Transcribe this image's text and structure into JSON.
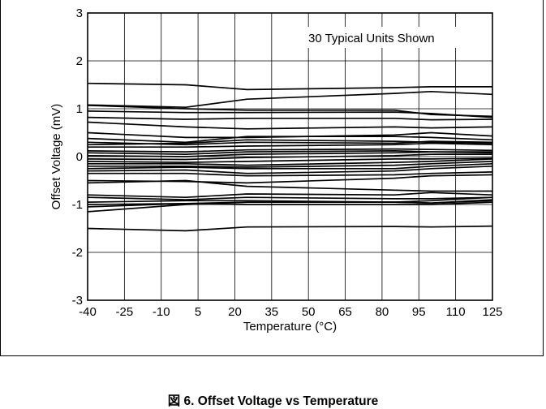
{
  "figure": {
    "caption": "図 6. Offset Voltage vs Temperature"
  },
  "chart_data": {
    "type": "line",
    "title": "",
    "xlabel": "Temperature (°C)",
    "ylabel": "Offset Voltage (mV)",
    "annotation": "30 Typical Units Shown",
    "xlim": [
      -40,
      125
    ],
    "ylim": [
      -3,
      3
    ],
    "xticks": [
      -40,
      -25,
      -10,
      5,
      20,
      35,
      50,
      65,
      80,
      95,
      110,
      125
    ],
    "yticks": [
      -3,
      -2,
      -1,
      0,
      1,
      2,
      3
    ],
    "grid": true,
    "legend": "none",
    "line_color": "#000000",
    "x": [
      -40,
      0,
      25,
      85,
      100,
      125
    ],
    "series": [
      {
        "values": [
          1.53,
          1.5,
          1.4,
          1.44,
          1.46,
          1.46
        ]
      },
      {
        "values": [
          1.08,
          1.03,
          1.2,
          1.32,
          1.36,
          1.3
        ]
      },
      {
        "values": [
          1.07,
          1.0,
          0.97,
          0.97,
          0.88,
          0.84
        ]
      },
      {
        "values": [
          0.95,
          0.92,
          0.92,
          0.93,
          0.9,
          0.82
        ]
      },
      {
        "values": [
          0.82,
          0.78,
          0.8,
          0.8,
          0.77,
          0.78
        ]
      },
      {
        "values": [
          0.72,
          0.62,
          0.58,
          0.62,
          0.6,
          0.62
        ]
      },
      {
        "values": [
          0.5,
          0.4,
          0.4,
          0.45,
          0.5,
          0.43
        ]
      },
      {
        "values": [
          0.38,
          0.3,
          0.42,
          0.42,
          0.4,
          0.35
        ]
      },
      {
        "values": [
          0.3,
          0.25,
          0.3,
          0.28,
          0.32,
          0.3
        ]
      },
      {
        "values": [
          0.2,
          0.2,
          0.22,
          0.25,
          0.28,
          0.25
        ]
      },
      {
        "values": [
          0.12,
          0.1,
          0.14,
          0.16,
          0.15,
          0.13
        ]
      },
      {
        "values": [
          0.08,
          0.05,
          0.1,
          0.12,
          0.1,
          0.08
        ]
      },
      {
        "values": [
          0.02,
          0.0,
          0.05,
          0.08,
          0.1,
          0.1
        ]
      },
      {
        "values": [
          -0.05,
          -0.06,
          -0.02,
          0.02,
          0.05,
          0.05
        ]
      },
      {
        "values": [
          -0.1,
          -0.12,
          -0.1,
          -0.05,
          -0.05,
          -0.03
        ]
      },
      {
        "values": [
          -0.15,
          -0.15,
          -0.18,
          -0.12,
          -0.1,
          -0.05
        ]
      },
      {
        "values": [
          -0.2,
          -0.2,
          -0.22,
          -0.18,
          -0.15,
          -0.1
        ]
      },
      {
        "values": [
          -0.25,
          -0.22,
          -0.25,
          -0.25,
          -0.2,
          -0.15
        ]
      },
      {
        "values": [
          -0.3,
          -0.28,
          -0.35,
          -0.3,
          -0.25,
          -0.2
        ]
      },
      {
        "values": [
          -0.35,
          -0.35,
          -0.4,
          -0.38,
          -0.35,
          -0.32
        ]
      },
      {
        "values": [
          -0.5,
          -0.52,
          -0.55,
          -0.45,
          -0.4,
          -0.38
        ]
      },
      {
        "values": [
          -0.55,
          -0.5,
          -0.62,
          -0.7,
          -0.72,
          -0.72
        ]
      },
      {
        "values": [
          -0.8,
          -0.85,
          -0.78,
          -0.8,
          -0.75,
          -0.8
        ]
      },
      {
        "values": [
          -0.85,
          -0.9,
          -0.85,
          -0.88,
          -0.88,
          -0.85
        ]
      },
      {
        "values": [
          -0.95,
          -0.92,
          -0.92,
          -0.95,
          -0.92,
          -0.85
        ]
      },
      {
        "values": [
          -1.0,
          -0.98,
          -0.95,
          -0.95,
          -0.97,
          -0.9
        ]
      },
      {
        "values": [
          -1.05,
          -0.98,
          -1.0,
          -1.0,
          -1.0,
          -0.95
        ]
      },
      {
        "values": [
          -1.15,
          -1.0,
          -0.95,
          -0.95,
          -0.97,
          -0.92
        ]
      },
      {
        "values": [
          -1.5,
          -1.55,
          -1.47,
          -1.46,
          -1.47,
          -1.45
        ]
      },
      {
        "values": [
          0.25,
          0.28,
          0.35,
          0.32,
          0.3,
          0.28
        ]
      }
    ]
  }
}
